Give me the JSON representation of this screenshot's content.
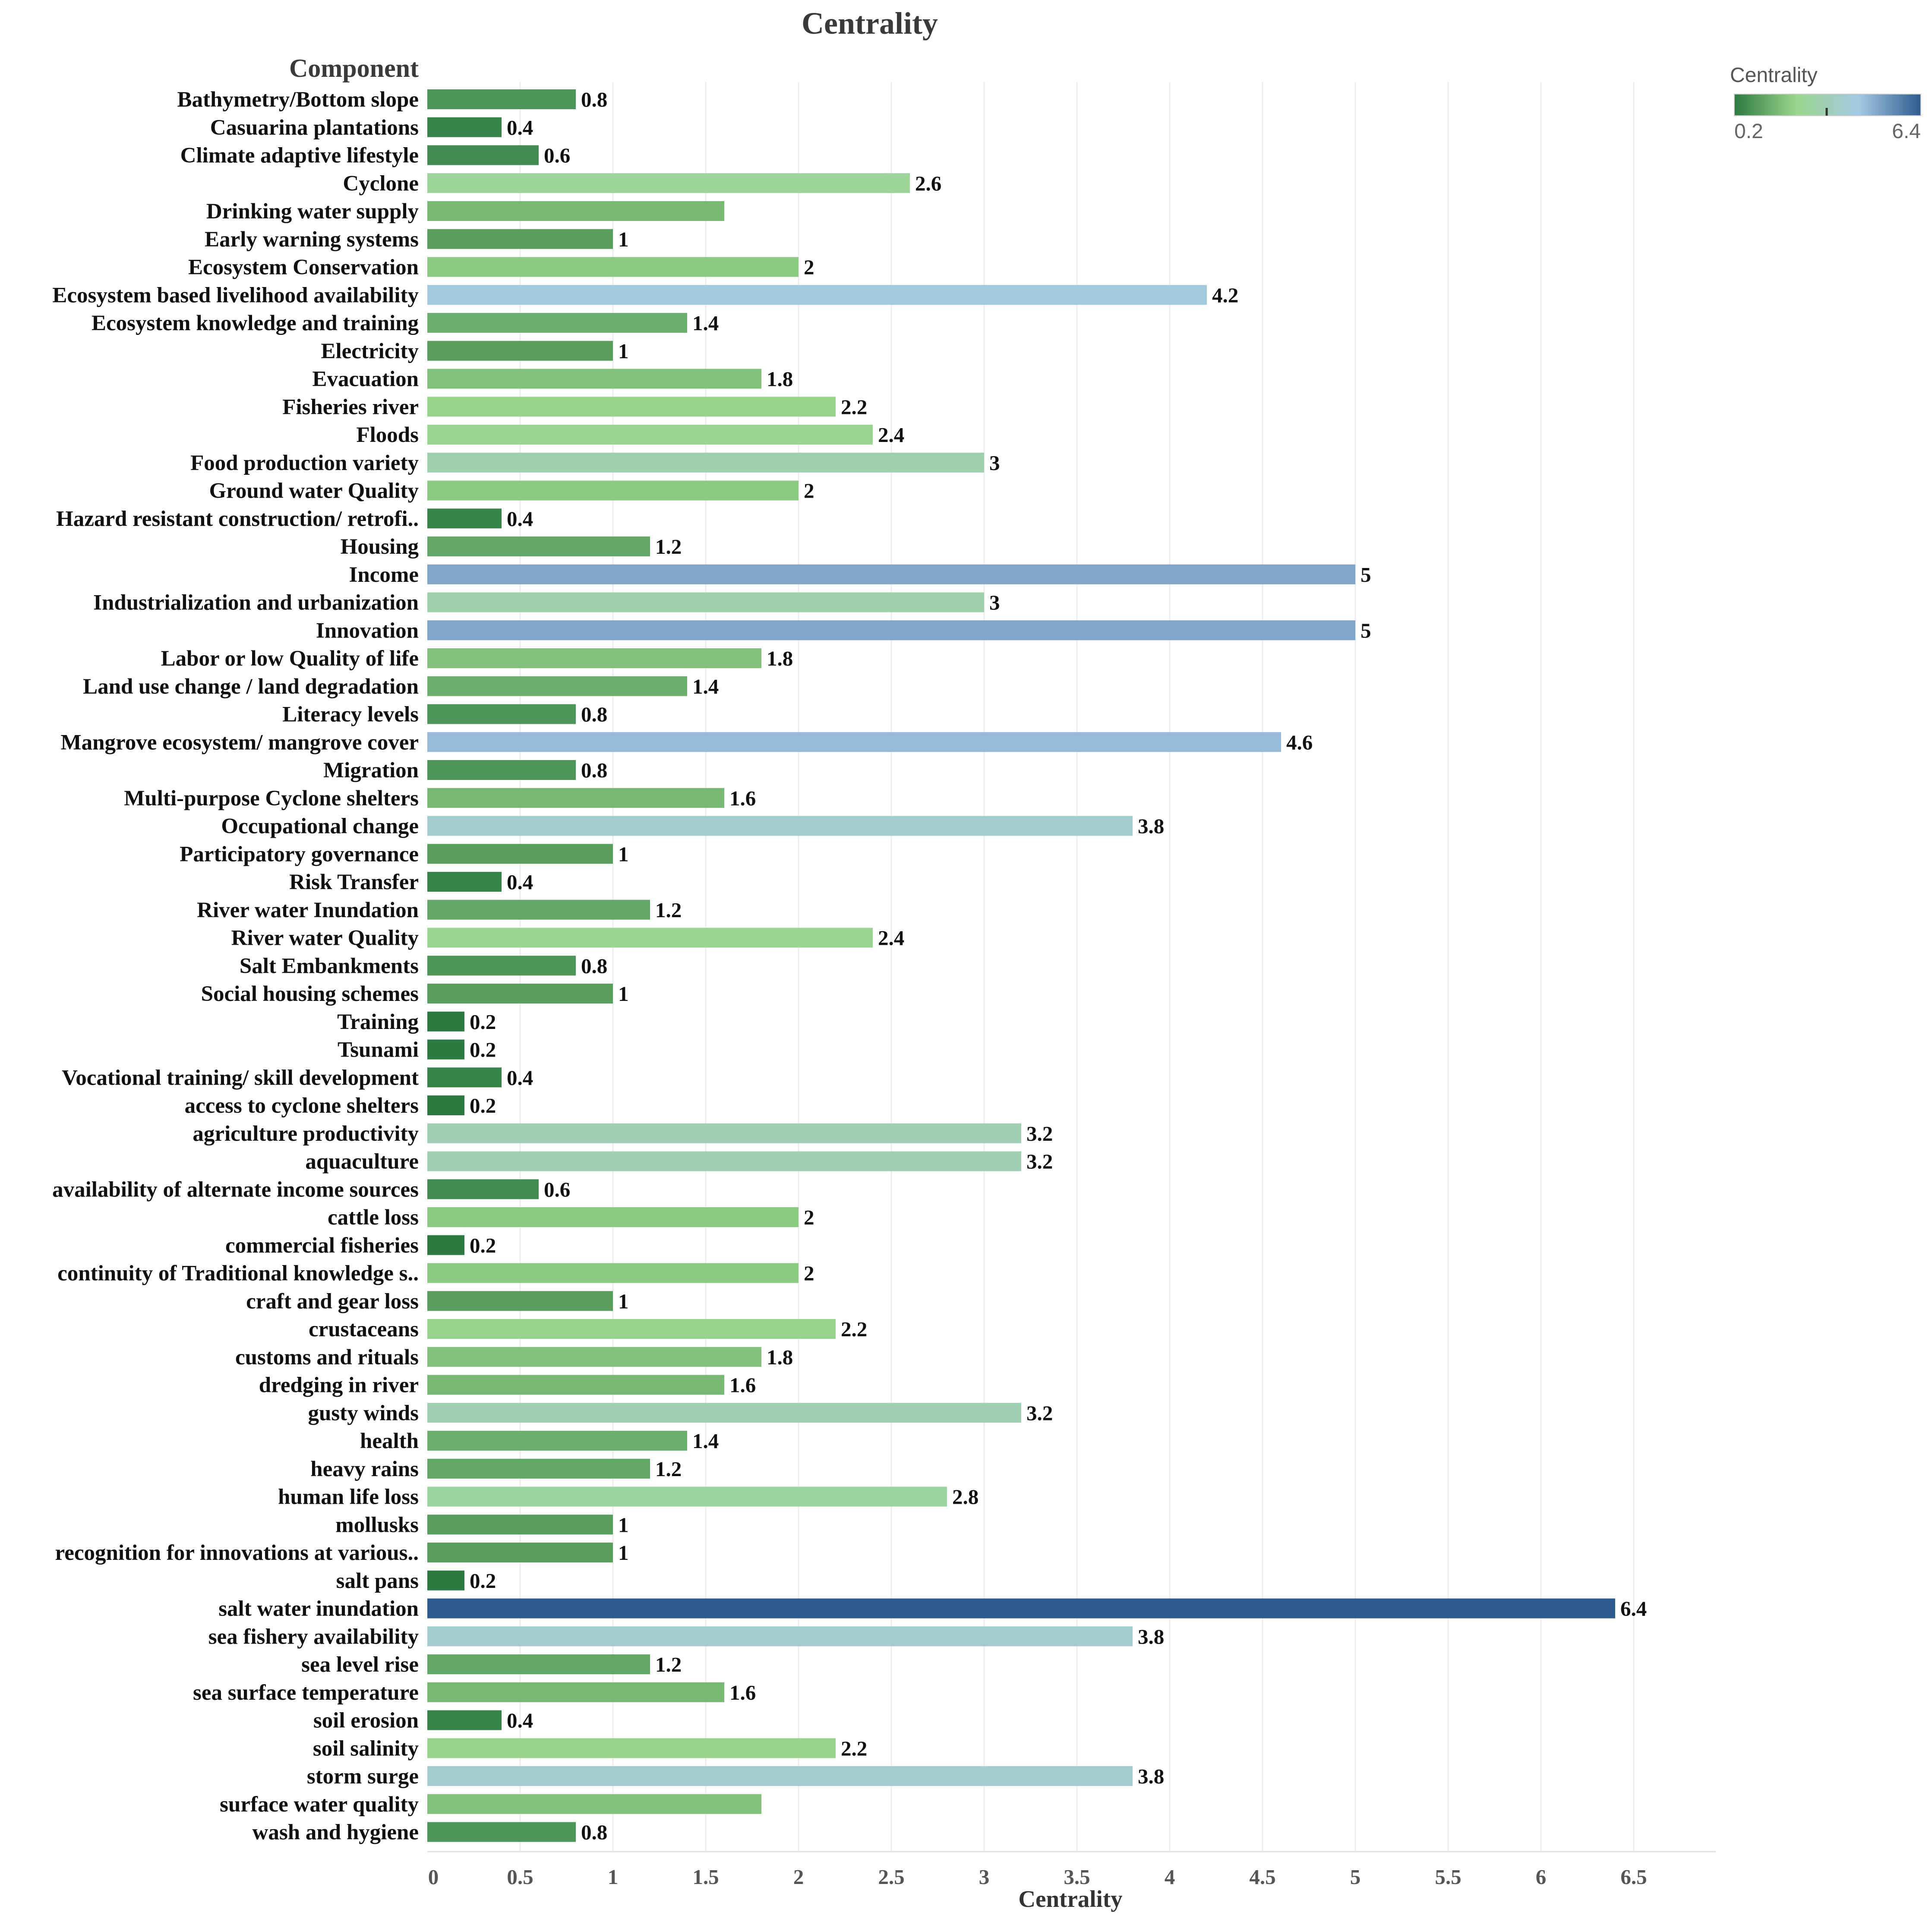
{
  "chart_data": {
    "type": "bar",
    "orientation": "horizontal",
    "title": "Centrality",
    "category_header": "Component",
    "xlabel": "Centrality",
    "xlim": [
      0,
      7
    ],
    "x_ticks": [
      "0",
      "0.5",
      "1",
      "1.5",
      "2",
      "2.5",
      "3",
      "3.5",
      "4",
      "4.5",
      "5",
      "5.5",
      "6",
      "6.5"
    ],
    "grid": "vertical",
    "legend": {
      "title": "Centrality",
      "min_label": "0.2",
      "max_label": "6.4",
      "placement": "top-right",
      "colors": [
        "#2e7a43",
        "#9ad68c",
        "#a5c8e3",
        "#2e5b8e"
      ]
    },
    "categories": [
      "Bathymetry/Bottom slope",
      "Casuarina plantations",
      "Climate adaptive lifestyle",
      "Cyclone",
      "Drinking water supply",
      "Early warning systems",
      "Ecosystem Conservation",
      "Ecosystem based livelihood availability",
      "Ecosystem knowledge and training",
      "Electricity",
      "Evacuation",
      "Fisheries river",
      "Floods",
      "Food production variety",
      "Ground water Quality",
      "Hazard resistant construction/ retrofi..",
      "Housing",
      "Income",
      "Industrialization and urbanization",
      "Innovation",
      "Labor or low Quality of life",
      "Land use change / land degradation",
      "Literacy levels",
      "Mangrove ecosystem/ mangrove cover",
      "Migration",
      "Multi-purpose Cyclone shelters",
      "Occupational change",
      "Participatory governance",
      "Risk Transfer",
      "River water Inundation",
      "River water Quality",
      "Salt Embankments",
      "Social housing schemes",
      "Training",
      "Tsunami",
      "Vocational training/ skill development",
      "access to cyclone shelters",
      "agriculture productivity",
      "aquaculture",
      "availability of alternate income sources",
      "cattle loss",
      "commercial fisheries",
      "continuity of Traditional knowledge s..",
      "craft and gear loss",
      "crustaceans",
      "customs and rituals",
      "dredging in river",
      "gusty winds",
      "health",
      "heavy rains",
      "human life loss",
      "mollusks",
      "recognition for innovations at various..",
      "salt pans",
      "salt water inundation",
      "sea fishery availability",
      "sea level rise",
      "sea surface temperature",
      "soil erosion",
      "soil salinity",
      "storm surge",
      "surface water quality",
      "wash and hygiene"
    ],
    "values": [
      0.8,
      0.4,
      0.6,
      2.6,
      1.6,
      1,
      2,
      4.2,
      1.4,
      1,
      1.8,
      2.2,
      2.4,
      3,
      2,
      0.4,
      1.2,
      5,
      3,
      5,
      1.8,
      1.4,
      0.8,
      4.6,
      0.8,
      1.6,
      3.8,
      1,
      0.4,
      1.2,
      2.4,
      0.8,
      1,
      0.2,
      0.2,
      0.4,
      0.2,
      3.2,
      3.2,
      0.6,
      2,
      0.2,
      2,
      1,
      2.2,
      1.8,
      1.6,
      3.2,
      1.4,
      1.2,
      2.8,
      1,
      1,
      0.2,
      6.4,
      3.8,
      1.2,
      1.6,
      0.4,
      2.2,
      3.8,
      1.8,
      0.8
    ],
    "value_labels": [
      "0.8",
      "0.4",
      "0.6",
      "2.6",
      "",
      "1",
      "2",
      "4.2",
      "1.4",
      "1",
      "1.8",
      "2.2",
      "2.4",
      "3",
      "2",
      "0.4",
      "1.2",
      "5",
      "3",
      "5",
      "1.8",
      "1.4",
      "0.8",
      "4.6",
      "0.8",
      "1.6",
      "3.8",
      "1",
      "0.4",
      "1.2",
      "2.4",
      "0.8",
      "1",
      "0.2",
      "0.2",
      "0.4",
      "0.2",
      "3.2",
      "3.2",
      "0.6",
      "2",
      "0.2",
      "2",
      "1",
      "2.2",
      "1.8",
      "1.6",
      "3.2",
      "1.4",
      "1.2",
      "2.8",
      "1",
      "1",
      "0.2",
      "6.4",
      "3.8",
      "1.2",
      "1.6",
      "0.4",
      "2.2",
      "3.8",
      "",
      "0.8"
    ]
  }
}
